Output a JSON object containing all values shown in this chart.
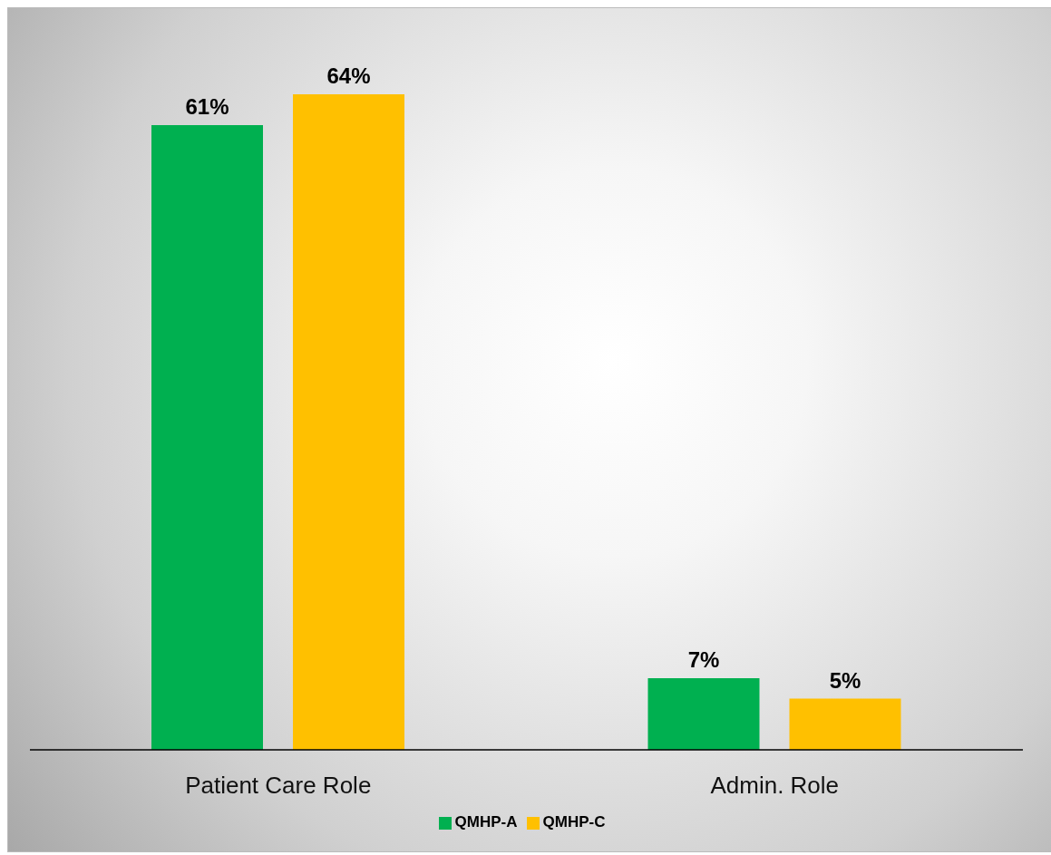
{
  "chart_data": {
    "type": "bar",
    "categories": [
      "Patient Care Role",
      "Admin. Role"
    ],
    "series": [
      {
        "name": "QMHP-A",
        "color": "#00b050",
        "values": [
          61,
          7
        ],
        "value_labels": [
          "61%",
          "7%"
        ]
      },
      {
        "name": "QMHP-C",
        "color": "#ffc000",
        "values": [
          64,
          5
        ],
        "value_labels": [
          "64%",
          "5%"
        ]
      }
    ],
    "legend": "bottom",
    "grid": false
  }
}
